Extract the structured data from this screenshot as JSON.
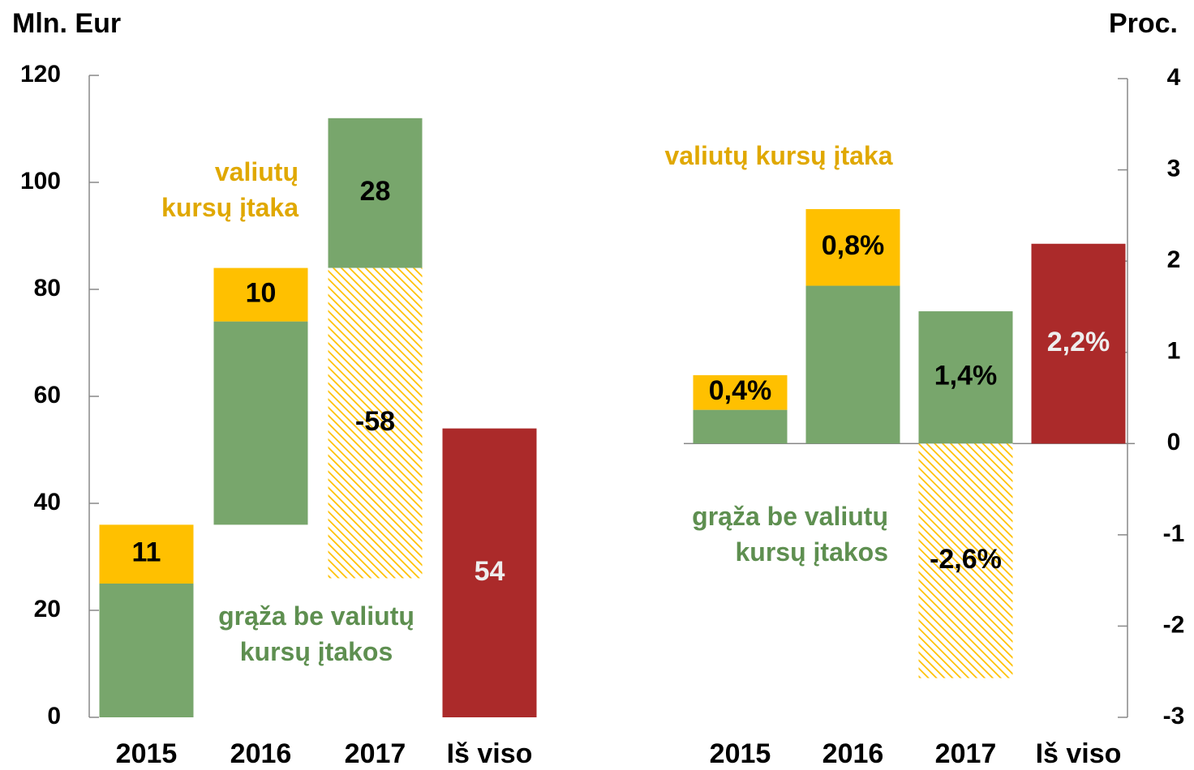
{
  "chart_data": [
    {
      "type": "waterfall",
      "ylabel": "Mln. Eur",
      "categories": [
        "2015",
        "2016",
        "2017",
        "Iš viso"
      ],
      "series": [
        {
          "name": "grąža be valiutų kursų įtakos",
          "color": "#78a66c",
          "label_color": "#000000",
          "values": [
            25,
            38,
            28,
            null
          ],
          "value_labels": [
            null,
            null,
            "28",
            null
          ]
        },
        {
          "name": "valiutų kursų įtaka",
          "color": "#ffc000",
          "label_color": "#000000",
          "values": [
            11,
            10,
            -58,
            null
          ],
          "value_labels": [
            "11",
            "10",
            "-58",
            null
          ]
        },
        {
          "color": "#ab2a2a",
          "label_color": "#eeeeee",
          "total": true,
          "values": [
            null,
            null,
            null,
            54
          ],
          "value_labels": [
            null,
            null,
            null,
            "54"
          ]
        }
      ],
      "ylim": [
        0,
        120
      ],
      "yticks": [
        0,
        20,
        40,
        60,
        80,
        100,
        120
      ],
      "y_axis_side": "left"
    },
    {
      "type": "bar",
      "ylabel": "Proc.",
      "categories": [
        "2015",
        "2016",
        "2017",
        "Iš viso"
      ],
      "series": [
        {
          "name": "grąža be valiutų kursų įtakos",
          "color": "#78a66c",
          "label_color": "#000000",
          "values": [
            0.37,
            1.73,
            1.45,
            null
          ],
          "value_labels": [
            null,
            null,
            "1,4%",
            null
          ]
        },
        {
          "name": "valiutų kursų įtaka",
          "color": "#ffc000",
          "label_color": "#000000",
          "values": [
            0.38,
            0.84,
            -2.57,
            null
          ],
          "value_labels": [
            "0,4%",
            "0,8%",
            "-2,6%",
            null
          ]
        },
        {
          "color": "#ab2a2a",
          "label_color": "#eeeeee",
          "total": true,
          "values": [
            null,
            null,
            null,
            2.19
          ],
          "value_labels": [
            null,
            null,
            null,
            "2,2%"
          ]
        }
      ],
      "ylim": [
        -3,
        4
      ],
      "yticks": [
        -3,
        -2,
        -1,
        0,
        1,
        2,
        3,
        4
      ],
      "y_axis_side": "right"
    }
  ]
}
